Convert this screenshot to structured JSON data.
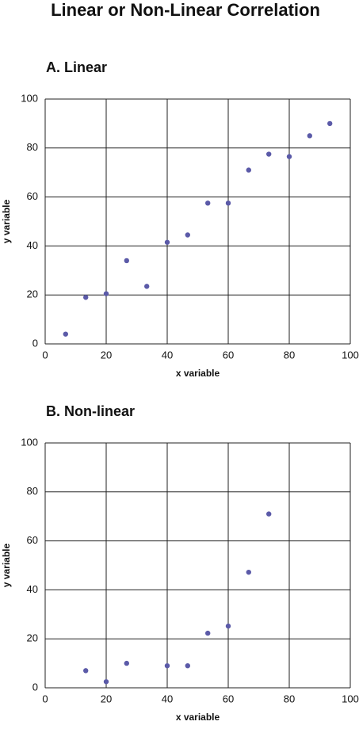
{
  "title": "Linear or Non-Linear Correlation",
  "chart_data": [
    {
      "type": "scatter",
      "title": "A.  Linear",
      "x_label": "x variable",
      "y_label": "y variable",
      "color": "#5b5aa8",
      "grid": true,
      "xlim": [
        0,
        100
      ],
      "ylim": [
        0,
        100
      ],
      "xticks": [
        0,
        20,
        40,
        60,
        80,
        100
      ],
      "yticks": [
        0,
        20,
        40,
        60,
        80,
        100
      ],
      "x": [
        6.7,
        13.3,
        20,
        26.7,
        33.3,
        40,
        46.7,
        53.3,
        60,
        66.7,
        73.3,
        80,
        86.7,
        93.3
      ],
      "values": [
        4,
        19,
        20.5,
        34,
        23.5,
        41.5,
        44.5,
        57.5,
        57.5,
        71,
        77.5,
        76.5,
        85,
        90
      ]
    },
    {
      "type": "scatter",
      "title": "B.  Non-linear",
      "x_label": "x variable",
      "y_label": "y variable",
      "color": "#5b5aa8",
      "grid": true,
      "xlim": [
        0,
        100
      ],
      "ylim": [
        0,
        100
      ],
      "xticks": [
        0,
        20,
        40,
        60,
        80,
        100
      ],
      "yticks": [
        0,
        20,
        40,
        60,
        80,
        100
      ],
      "x": [
        13.3,
        20,
        26.7,
        40,
        46.7,
        53.3,
        60,
        66.7,
        73.3
      ],
      "values": [
        7,
        2.5,
        10,
        9,
        9,
        22.3,
        25.2,
        47.2,
        71
      ]
    }
  ]
}
